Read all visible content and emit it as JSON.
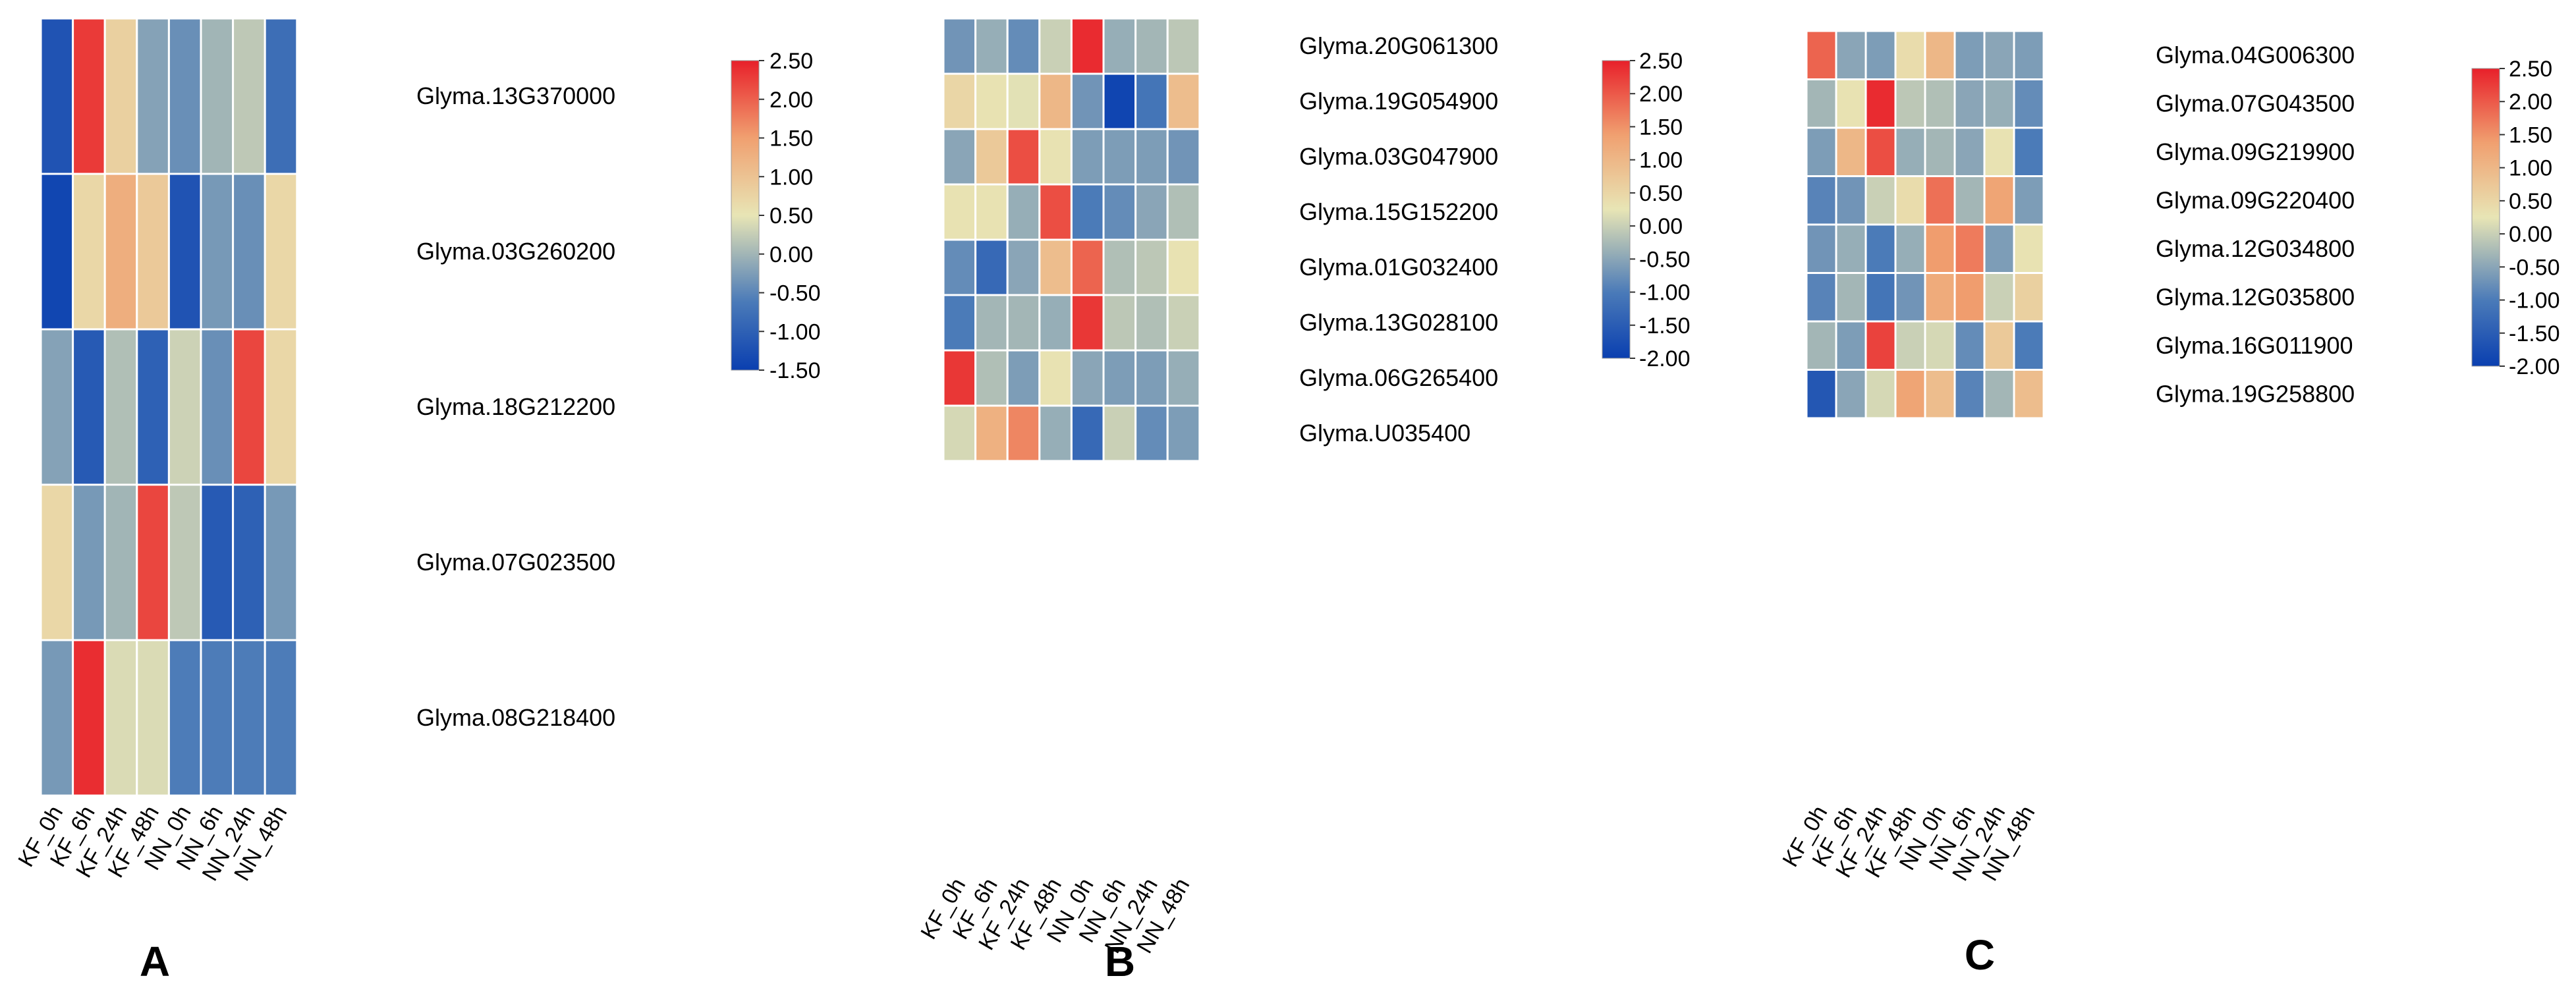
{
  "colors": {
    "low": "#0a3fb0",
    "mid_low": "#4a7ab8",
    "mid": "#e8e5b5",
    "mid_high": "#f0a070",
    "high": "#e8202a"
  },
  "chart_data": [
    {
      "type": "heatmap",
      "panel_label": "A",
      "columns": [
        "KF_0h",
        "KF_6h",
        "KF_24h",
        "KF_48h",
        "NN_0h",
        "NN_6h",
        "NN_24h",
        "NN_48h"
      ],
      "rows": [
        "Glyma.13G370000",
        "Glyma.03G260200",
        "Glyma.18G212200",
        "Glyma.07G023500",
        "Glyma.08G218400"
      ],
      "values": [
        [
          -1.2,
          2.3,
          0.8,
          -0.2,
          -0.4,
          0.0,
          0.2,
          -0.8
        ],
        [
          -1.4,
          0.7,
          1.3,
          0.9,
          -1.2,
          -0.3,
          -0.4,
          0.7
        ],
        [
          -0.2,
          -1.1,
          0.1,
          -1.0,
          0.3,
          -0.4,
          2.2,
          0.7
        ],
        [
          0.7,
          -0.3,
          0.0,
          2.2,
          0.2,
          -1.1,
          -1.0,
          -0.3
        ],
        [
          -0.3,
          2.4,
          0.4,
          0.4,
          -0.6,
          -0.6,
          -0.6,
          -0.6
        ]
      ],
      "colorbar": {
        "min": -1.5,
        "max": 2.5,
        "ticks": [
          "2.50",
          "2.00",
          "1.50",
          "1.00",
          "0.50",
          "0.00",
          "-0.50",
          "-1.00",
          "-1.50"
        ]
      }
    },
    {
      "type": "heatmap",
      "panel_label": "B",
      "columns": [
        "KF_0h",
        "KF_6h",
        "KF_24h",
        "KF_48h",
        "NN_0h",
        "NN_6h",
        "NN_24h",
        "NN_48h"
      ],
      "rows": [
        "Glyma.20G061300",
        "Glyma.19G054900",
        "Glyma.03G047900",
        "Glyma.15G152200",
        "Glyma.01G032400",
        "Glyma.13G028100",
        "Glyma.06G265400",
        "Glyma.U035400"
      ],
      "values": [
        [
          -0.7,
          -0.4,
          -0.8,
          0.0,
          2.4,
          -0.4,
          -0.3,
          -0.1
        ],
        [
          0.5,
          0.3,
          0.2,
          1.0,
          -0.7,
          -1.9,
          -1.1,
          0.9
        ],
        [
          -0.5,
          0.7,
          2.1,
          0.3,
          -0.6,
          -0.6,
          -0.6,
          -0.7
        ],
        [
          0.3,
          0.3,
          -0.4,
          2.1,
          -1.0,
          -0.8,
          -0.5,
          -0.2
        ],
        [
          -0.8,
          -1.3,
          -0.5,
          0.9,
          1.9,
          -0.2,
          -0.1,
          0.3
        ],
        [
          -1.0,
          -0.3,
          -0.3,
          -0.4,
          2.3,
          -0.1,
          -0.2,
          0.0
        ],
        [
          2.3,
          -0.2,
          -0.6,
          0.3,
          -0.5,
          -0.6,
          -0.6,
          -0.4
        ],
        [
          0.1,
          1.1,
          1.6,
          -0.4,
          -1.3,
          0.0,
          -0.8,
          -0.6
        ]
      ],
      "colorbar": {
        "min": -2.0,
        "max": 2.5,
        "ticks": [
          "2.50",
          "2.00",
          "1.50",
          "1.00",
          "0.50",
          "0.00",
          "-0.50",
          "-1.00",
          "-1.50",
          "-2.00"
        ]
      }
    },
    {
      "type": "heatmap",
      "panel_label": "C",
      "columns": [
        "KF_0h",
        "KF_6h",
        "KF_24h",
        "KF_48h",
        "NN_0h",
        "NN_6h",
        "NN_24h",
        "NN_48h"
      ],
      "rows": [
        "Glyma.04G006300",
        "Glyma.07G043500",
        "Glyma.09G219900",
        "Glyma.09G220400",
        "Glyma.12G034800",
        "Glyma.12G035800",
        "Glyma.16G011900",
        "Glyma.19G258800"
      ],
      "values": [
        [
          1.9,
          -0.5,
          -0.6,
          0.4,
          1.0,
          -0.6,
          -0.5,
          -0.6
        ],
        [
          -0.3,
          0.3,
          2.4,
          -0.1,
          -0.2,
          -0.5,
          -0.4,
          -0.8
        ],
        [
          -0.6,
          1.0,
          2.1,
          -0.4,
          -0.3,
          -0.5,
          0.3,
          -1.0
        ],
        [
          -0.9,
          -0.7,
          0.0,
          0.4,
          1.8,
          -0.3,
          1.3,
          -0.6
        ],
        [
          -0.7,
          -0.4,
          -1.0,
          -0.4,
          1.4,
          1.7,
          -0.6,
          0.3
        ],
        [
          -0.9,
          -0.3,
          -1.1,
          -0.7,
          1.2,
          1.4,
          0.0,
          0.6
        ],
        [
          -0.3,
          -0.6,
          2.2,
          0.0,
          0.1,
          -0.8,
          0.7,
          -1.0
        ],
        [
          -1.6,
          -0.5,
          0.1,
          1.3,
          0.9,
          -0.9,
          -0.3,
          0.9
        ]
      ],
      "colorbar": {
        "min": -2.0,
        "max": 2.5,
        "ticks": [
          "2.50",
          "2.00",
          "1.50",
          "1.00",
          "0.50",
          "0.00",
          "-0.50",
          "-1.00",
          "-1.50",
          "-2.00"
        ]
      }
    }
  ]
}
